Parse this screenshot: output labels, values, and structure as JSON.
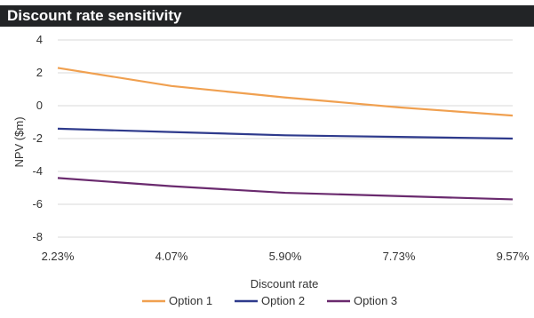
{
  "chart_data": {
    "type": "line",
    "title": "Discount rate sensitivity",
    "xlabel": "Discount rate",
    "ylabel": "NPV ($m)",
    "x_tick_labels": [
      "2.23%",
      "4.07%",
      "5.90%",
      "7.73%",
      "9.57%"
    ],
    "x": [
      0,
      1,
      2,
      3,
      4
    ],
    "ylim": [
      -8,
      4
    ],
    "y_ticks": [
      4,
      2,
      0,
      -2,
      -4,
      -6,
      -8
    ],
    "grid": true,
    "legend": "bottom",
    "series": [
      {
        "name": "Option 1",
        "color": "#f0a050",
        "values": [
          2.3,
          1.2,
          0.5,
          -0.1,
          -0.6
        ]
      },
      {
        "name": "Option 2",
        "color": "#2e3a8c",
        "values": [
          -1.4,
          -1.6,
          -1.8,
          -1.9,
          -2.0
        ]
      },
      {
        "name": "Option 3",
        "color": "#6a2a6e",
        "values": [
          -4.4,
          -4.9,
          -5.3,
          -5.5,
          -5.7
        ]
      }
    ]
  }
}
